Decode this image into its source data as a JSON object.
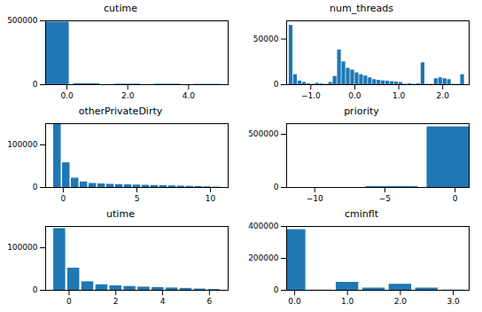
{
  "chart_data": [
    {
      "type": "bar",
      "title": "cutime",
      "color": "#1f77b4",
      "x": [
        -0.35,
        0.65,
        1.3,
        2.0,
        2.65,
        3.3,
        3.95,
        4.6,
        5.25
      ],
      "values": [
        490000,
        8000,
        100,
        4500,
        100,
        4000,
        100,
        2500,
        500
      ],
      "xlim": [
        -0.7,
        5.3
      ],
      "ylim": [
        0,
        500000
      ],
      "xticks": [
        0,
        2,
        4
      ],
      "yticks": [
        0,
        500000
      ]
    },
    {
      "type": "bar",
      "title": "num_threads",
      "color": "#1f77b4",
      "x": [
        -1.45,
        -1.35,
        -1.25,
        -1.15,
        -1.05,
        -0.95,
        -0.85,
        -0.75,
        -0.65,
        -0.55,
        -0.45,
        -0.35,
        -0.25,
        -0.15,
        -0.05,
        0.05,
        0.15,
        0.25,
        0.35,
        0.45,
        0.55,
        0.65,
        0.75,
        0.85,
        0.95,
        1.05,
        1.15,
        1.25,
        1.35,
        1.45,
        1.55,
        1.65,
        1.75,
        1.85,
        1.95,
        2.05,
        2.15,
        2.25,
        2.35,
        2.45
      ],
      "values": [
        65000,
        11000,
        4000,
        2500,
        1000,
        500,
        1500,
        800,
        400,
        2500,
        9000,
        38000,
        25000,
        18000,
        16000,
        13000,
        11000,
        9500,
        7500,
        5500,
        4800,
        4200,
        3800,
        3300,
        2800,
        2300,
        400,
        900,
        400,
        900,
        24000,
        400,
        400,
        6500,
        7500,
        6500,
        5500,
        400,
        400,
        11000
      ],
      "xlim": [
        -1.55,
        2.6
      ],
      "ylim": [
        0,
        70000
      ],
      "xticks": [
        -1,
        0,
        1,
        2
      ],
      "yticks": [
        0,
        50000
      ]
    },
    {
      "type": "bar",
      "title": "otherPrivateDirty",
      "color": "#1f77b4",
      "x": [
        -0.4,
        0.2,
        0.8,
        1.4,
        2.0,
        2.6,
        3.2,
        3.8,
        4.4,
        5.0,
        5.6,
        6.2,
        6.8,
        7.4,
        8.0,
        8.6,
        9.2,
        9.8,
        10.4
      ],
      "values": [
        148000,
        58000,
        22000,
        13000,
        9500,
        8500,
        7500,
        6800,
        6200,
        5700,
        5200,
        4700,
        4200,
        3700,
        3200,
        2700,
        2200,
        1500,
        800
      ],
      "xlim": [
        -1.2,
        11.2
      ],
      "ylim": [
        0,
        150000
      ],
      "xticks": [
        0,
        5,
        10
      ],
      "yticks": [
        0,
        100000
      ]
    },
    {
      "type": "bar",
      "title": "priority",
      "color": "#1f77b4",
      "x": [
        -4.5,
        -0.15
      ],
      "values": [
        8000,
        570000
      ],
      "xlim": [
        -12,
        1
      ],
      "ylim": [
        0,
        600000
      ],
      "xticks": [
        -10,
        -5,
        0
      ],
      "yticks": [
        0,
        500000
      ]
    },
    {
      "type": "bar",
      "title": "utime",
      "color": "#1f77b4",
      "x": [
        -0.4,
        0.2,
        0.8,
        1.4,
        2.0,
        2.6,
        3.2,
        3.8,
        4.4,
        5.0,
        5.6,
        6.2
      ],
      "values": [
        145000,
        52000,
        20000,
        13000,
        10500,
        9000,
        7500,
        6500,
        5500,
        4500,
        3000,
        1800
      ],
      "xlim": [
        -1.0,
        6.8
      ],
      "ylim": [
        0,
        150000
      ],
      "xticks": [
        0,
        2,
        4,
        6
      ],
      "yticks": [
        0,
        100000
      ]
    },
    {
      "type": "bar",
      "title": "cminflt",
      "color": "#1f77b4",
      "x": [
        0.0,
        0.5,
        1.0,
        1.5,
        2.0,
        2.5,
        3.0
      ],
      "values": [
        380000,
        1000,
        50000,
        14000,
        38000,
        14000,
        1500
      ],
      "xlim": [
        -0.15,
        3.3
      ],
      "ylim": [
        0,
        400000
      ],
      "xticks": [
        0,
        1,
        2,
        3
      ],
      "yticks": [
        0,
        200000,
        400000
      ]
    }
  ]
}
